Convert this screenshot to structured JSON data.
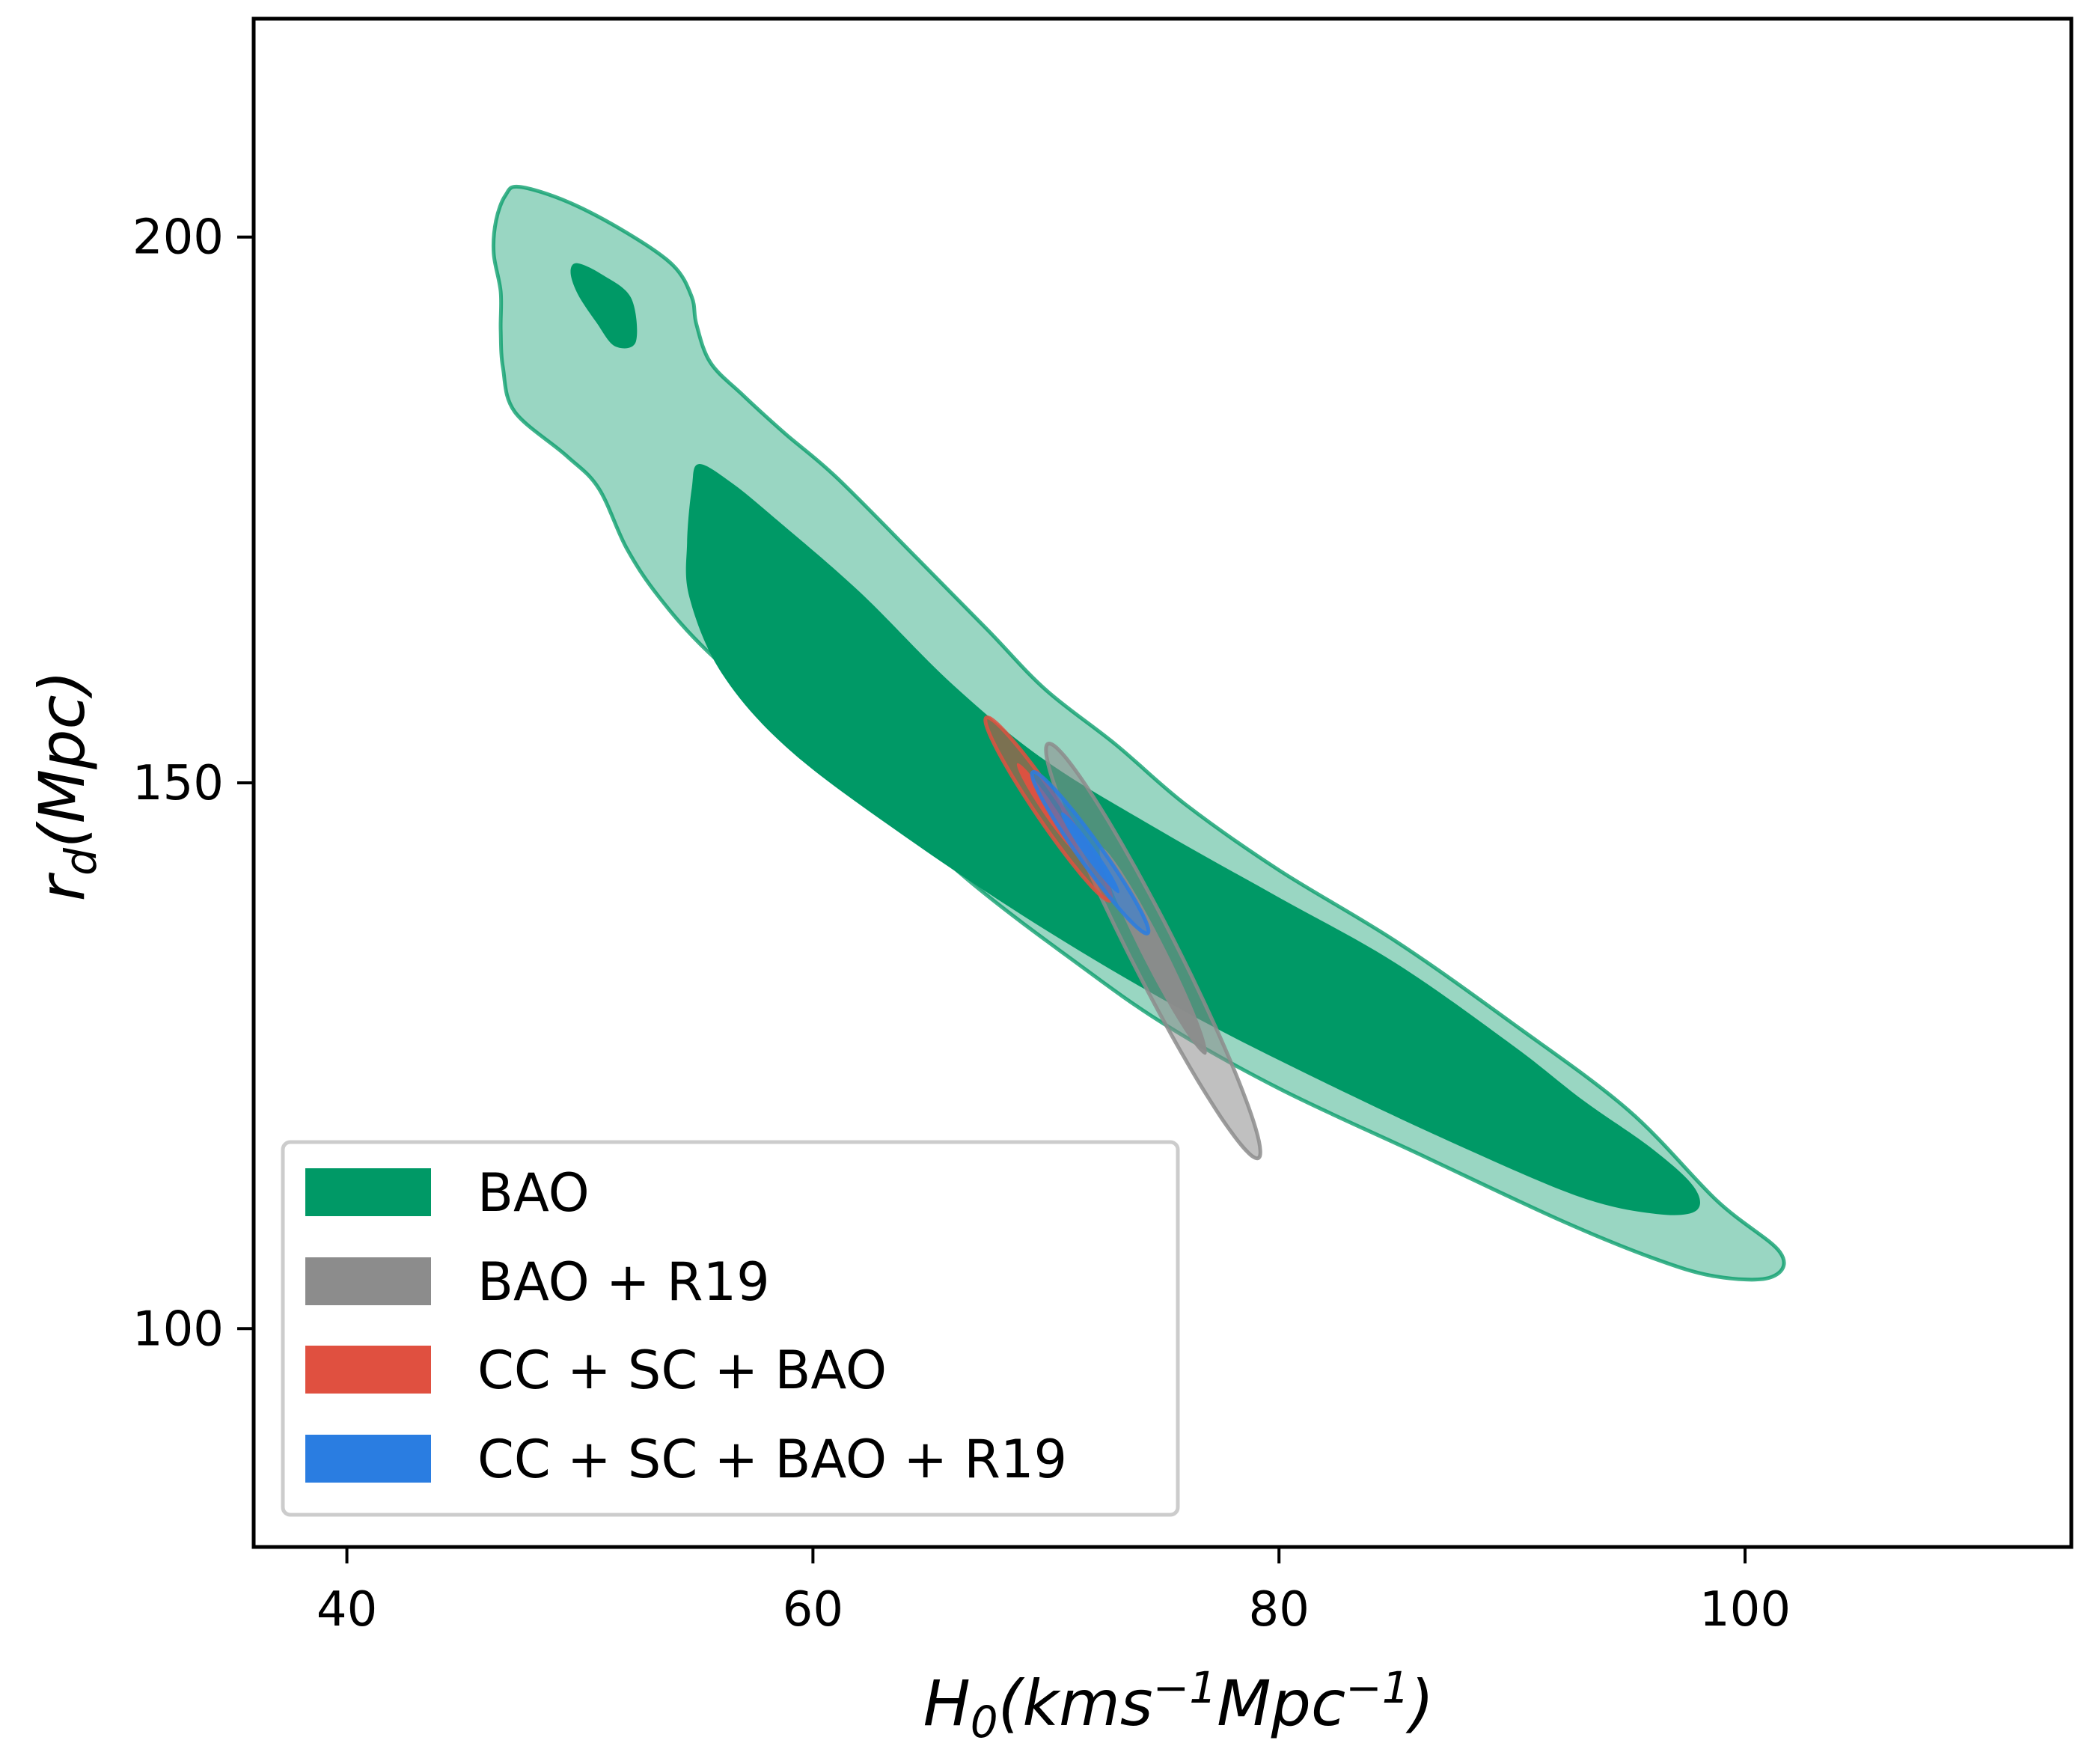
{
  "chart_data": {
    "type": "contour",
    "xlabel": {
      "base": "H",
      "sub": "0",
      "open": "(kms",
      "sup1": "−1",
      "mid": "Mpc",
      "sup2": "−1",
      "close": ")"
    },
    "ylabel": {
      "base": "r",
      "sub": "d",
      "rest": "(Mpc)"
    },
    "xlim": [
      36,
      114
    ],
    "ylim": [
      80,
      220
    ],
    "xticks": [
      40,
      60,
      80,
      100
    ],
    "yticks": [
      100,
      150,
      200
    ],
    "xtick_labels": [
      "40",
      "60",
      "80",
      "100"
    ],
    "ytick_labels": [
      "100",
      "150",
      "200"
    ],
    "legend_position": "lower-left",
    "series": [
      {
        "name": "BAO",
        "color": "#009966",
        "outer_contour": [
          [
            47.4,
            204.6
          ],
          [
            49.5,
            203.2
          ],
          [
            52,
            200.4
          ],
          [
            54,
            197.4
          ],
          [
            54.8,
            194.5
          ],
          [
            55,
            192
          ],
          [
            55.6,
            188.5
          ],
          [
            57,
            185.5
          ],
          [
            58.8,
            182
          ],
          [
            61,
            178
          ],
          [
            64.5,
            170.5
          ],
          [
            67.5,
            164
          ],
          [
            70,
            158.5
          ],
          [
            73,
            153.5
          ],
          [
            76,
            148
          ],
          [
            80,
            142
          ],
          [
            85,
            135.5
          ],
          [
            90,
            128
          ],
          [
            95,
            120
          ],
          [
            98.8,
            111.7
          ],
          [
            101.5,
            107
          ],
          [
            101.1,
            104.7
          ],
          [
            98.7,
            104.8
          ],
          [
            96,
            106.5
          ],
          [
            92,
            110
          ],
          [
            86,
            116
          ],
          [
            80,
            122
          ],
          [
            75,
            128
          ],
          [
            71,
            134
          ],
          [
            67,
            140.5
          ],
          [
            63,
            148
          ],
          [
            59,
            155.5
          ],
          [
            55.5,
            162
          ],
          [
            53.4,
            167
          ],
          [
            52,
            171.5
          ],
          [
            50.8,
            177
          ],
          [
            49.4,
            180
          ],
          [
            47.2,
            184
          ],
          [
            46.7,
            188
          ],
          [
            46.6,
            191.5
          ],
          [
            46.6,
            195
          ],
          [
            46.3,
            198.5
          ],
          [
            46.4,
            201.5
          ],
          [
            46.8,
            203.8
          ]
        ],
        "inner_contours": [
          [
            [
              49.9,
              197.6
            ],
            [
              51,
              196.5
            ],
            [
              52.2,
              194.4
            ],
            [
              52.4,
              190.4
            ],
            [
              51.5,
              190
            ],
            [
              50.7,
              192.2
            ],
            [
              49.9,
              194.8
            ],
            [
              49.6,
              196.8
            ]
          ],
          [
            [
              55.1,
              179.2
            ],
            [
              56.5,
              177.5
            ],
            [
              58.5,
              174
            ],
            [
              62,
              167.5
            ],
            [
              66,
              159
            ],
            [
              70,
              152
            ],
            [
              75,
              145.5
            ],
            [
              80,
              139.5
            ],
            [
              85,
              133.5
            ],
            [
              90,
              126
            ],
            [
              93,
              121
            ],
            [
              96,
              116.5
            ],
            [
              97.8,
              113
            ],
            [
              97.9,
              110.8
            ],
            [
              96.2,
              110.5
            ],
            [
              93,
              112
            ],
            [
              88,
              116.5
            ],
            [
              82,
              122.5
            ],
            [
              76,
              129
            ],
            [
              70,
              136.5
            ],
            [
              64,
              145
            ],
            [
              59,
              153
            ],
            [
              56.1,
              160
            ],
            [
              54.7,
              167
            ],
            [
              54.6,
              172
            ],
            [
              54.8,
              177
            ]
          ]
        ],
        "outer_opacity": 0.4,
        "inner_opacity": 1.0
      },
      {
        "name": "BAO + R19",
        "color": "#8c8c8c",
        "center": [
          74.6,
          134.6
        ],
        "sigma": [
          2.3,
          9.5
        ],
        "rho": -0.97,
        "levels": [
          1,
          2
        ],
        "opacity": [
          0.95,
          0.55
        ]
      },
      {
        "name": "CC + SC + BAO",
        "color": "#e05040",
        "center": [
          70.1,
          147.6
        ],
        "sigma": [
          1.35,
          4.2
        ],
        "rho": -0.97,
        "levels": [
          1,
          2
        ],
        "opacity": [
          0.95,
          0.55
        ]
      },
      {
        "name": "CC + SC + BAO + R19",
        "color": "#2a7de1",
        "center": [
          71.9,
          143.6
        ],
        "sigma": [
          1.25,
          3.7
        ],
        "rho": -0.97,
        "levels": [
          1,
          2
        ],
        "opacity": [
          0.95,
          0.55
        ]
      }
    ]
  }
}
